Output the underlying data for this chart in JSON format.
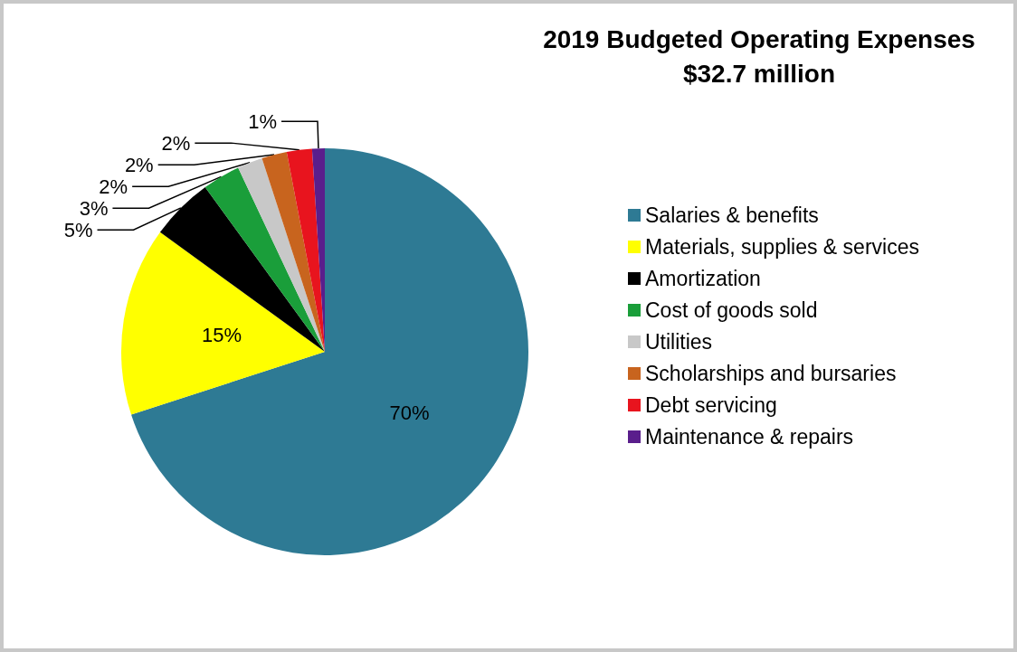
{
  "chart_data": {
    "type": "pie",
    "title": "2019 Budgeted Operating Expenses",
    "subtitle": "$32.7 million",
    "categories": [
      "Salaries & benefits",
      "Materials, supplies & services",
      "Amortization",
      "Cost of goods sold",
      "Utilities",
      "Scholarships and bursaries",
      "Debt servicing",
      "Maintenance & repairs"
    ],
    "values": [
      70,
      15,
      5,
      3,
      2,
      2,
      2,
      1
    ],
    "value_labels": [
      "70%",
      "15%",
      "5%",
      "3%",
      "2%",
      "2%",
      "2%",
      "1%"
    ],
    "colors": [
      "#2e7a94",
      "#ffff00",
      "#000000",
      "#1a9e3a",
      "#c8c8c8",
      "#c8641e",
      "#e8141e",
      "#5a1e8c"
    ],
    "legend": "right"
  }
}
